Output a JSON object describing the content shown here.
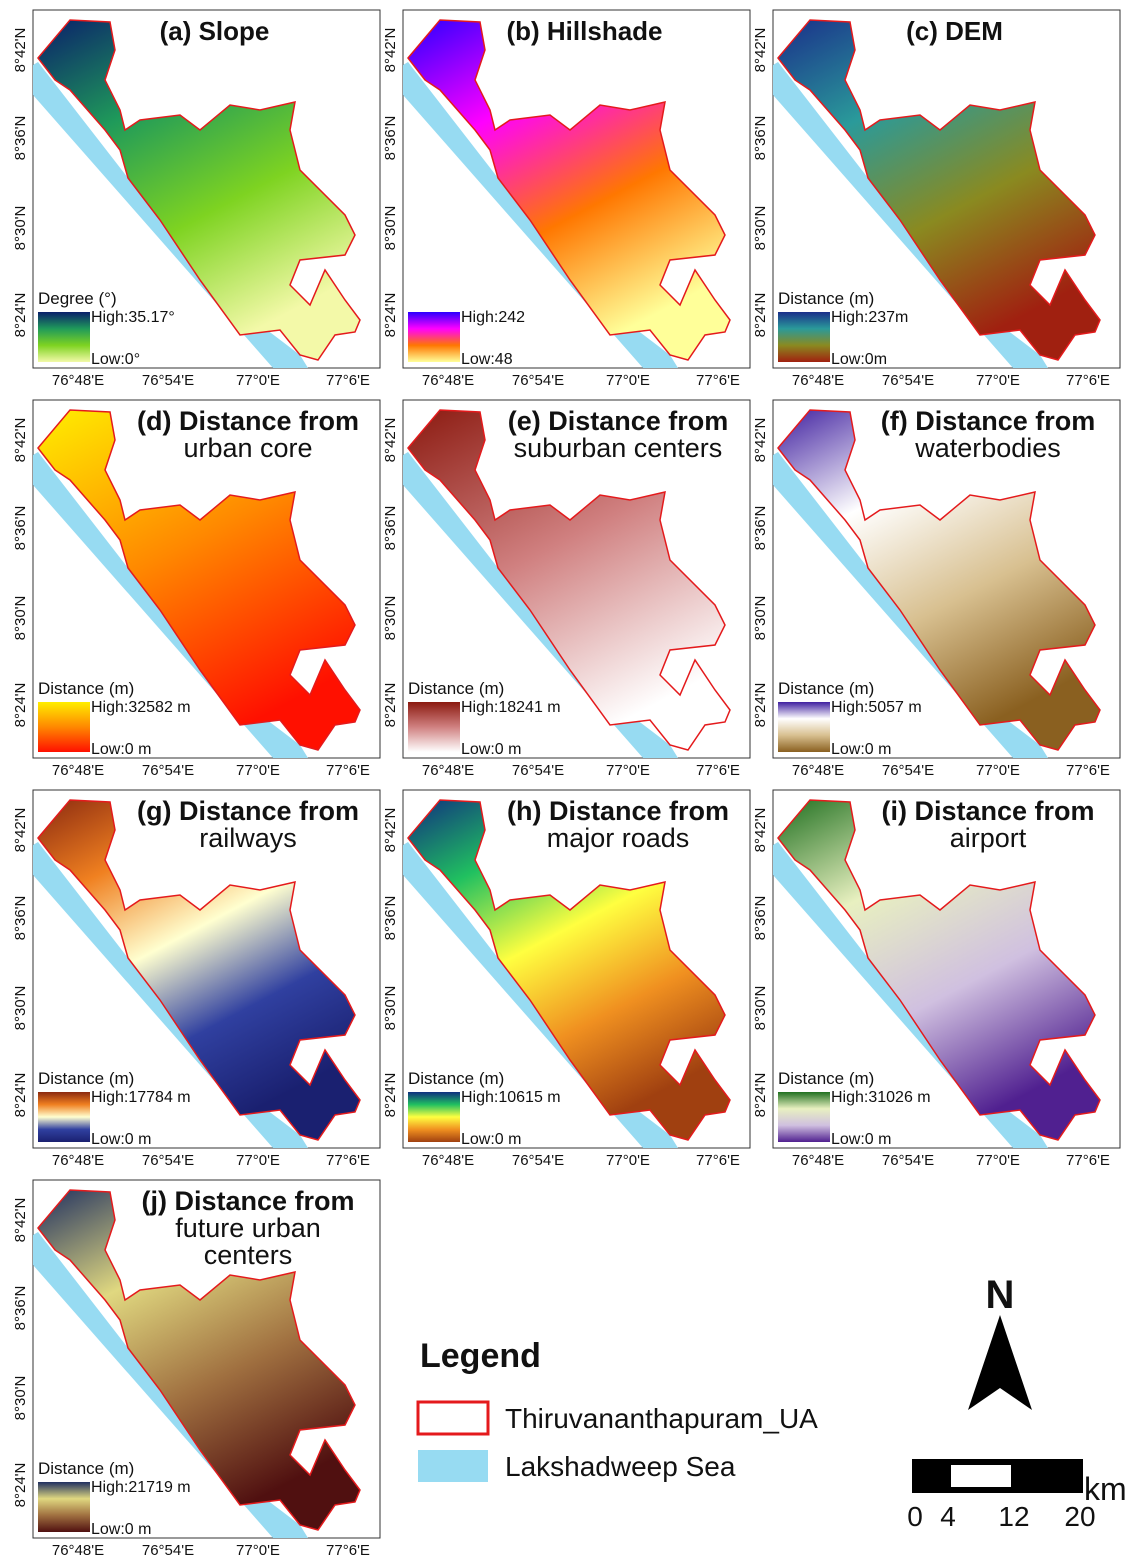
{
  "panels": [
    {
      "title": [
        "(a) Slope"
      ],
      "legend_title": "Degree (°)",
      "high": "High:35.17°",
      "low": "Low:0°",
      "colors": [
        "#0a1f6b",
        "#1f9a5a",
        "#7ed321",
        "#f3f9a8"
      ]
    },
    {
      "title": [
        "(b) Hillshade"
      ],
      "high": "High:242",
      "low": "Low:48",
      "colors": [
        "#2a00ff",
        "#ff00ff",
        "#ff7700",
        "#ffff99"
      ]
    },
    {
      "title": [
        "(c) DEM"
      ],
      "legend_title": "Distance (m)",
      "high": "High:237m",
      "low": "Low:0m",
      "colors": [
        "#1a2f8a",
        "#2a9a9a",
        "#8a8a20",
        "#a02010"
      ]
    },
    {
      "title": [
        "(d) Distance from",
        "urban core"
      ],
      "legend_title": "Distance (m)",
      "high": "High:32582 m",
      "low": "Low:0 m",
      "colors": [
        "#ffee00",
        "#ff8800",
        "#ff1000"
      ]
    },
    {
      "title": [
        "(e) Distance from",
        "suburban centers"
      ],
      "legend_title": "Distance (m)",
      "high": "High:18241 m",
      "low": "Low:0 m",
      "colors": [
        "#8b1a10",
        "#d08080",
        "#ffffff"
      ]
    },
    {
      "title": [
        "(f) Distance from",
        "waterbodies"
      ],
      "legend_title": "Distance (m)",
      "high": "High:5057 m",
      "low": "Low:0 m",
      "colors": [
        "#4020a0",
        "#ffffff",
        "#d8c090",
        "#8a6020"
      ]
    },
    {
      "title": [
        "(g) Distance from",
        "railways"
      ],
      "legend_title": "Distance (m)",
      "high": "High:17784 m",
      "low": "Low:0 m",
      "colors": [
        "#8b2a10",
        "#f08020",
        "#ffffd0",
        "#3040a0",
        "#1a2070"
      ]
    },
    {
      "title": [
        "(h) Distance from",
        "major roads"
      ],
      "legend_title": "Distance (m)",
      "high": "High:10615 m",
      "low": "Low:0 m",
      "colors": [
        "#103080",
        "#20c060",
        "#ffff40",
        "#f09020",
        "#a04010"
      ]
    },
    {
      "title": [
        "(i) Distance from",
        "airport"
      ],
      "legend_title": "Distance (m)",
      "high": "High:31026 m",
      "low": "Low:0 m",
      "colors": [
        "#207020",
        "#e8f0c0",
        "#d0c0e0",
        "#502090"
      ]
    },
    {
      "title": [
        "(j) Distance from",
        "future urban",
        "centers"
      ],
      "legend_title": "Distance (m)",
      "high": "High:21719 m",
      "low": "Low:0 m",
      "colors": [
        "#203060",
        "#e0d880",
        "#a07040",
        "#501010"
      ]
    }
  ],
  "lat_ticks": [
    "8°42'N",
    "8°36'N",
    "8°30'N",
    "8°24'N"
  ],
  "lon_ticks": [
    "76°48'E",
    "76°54'E",
    "77°0'E",
    "77°6'E"
  ],
  "legend": {
    "title": "Legend",
    "items": [
      "Thiruvananthapuram_UA",
      "Lakshadweep Sea"
    ]
  },
  "north": "N",
  "scale": {
    "unit": "km",
    "ticks": [
      0,
      4,
      12,
      20
    ]
  }
}
